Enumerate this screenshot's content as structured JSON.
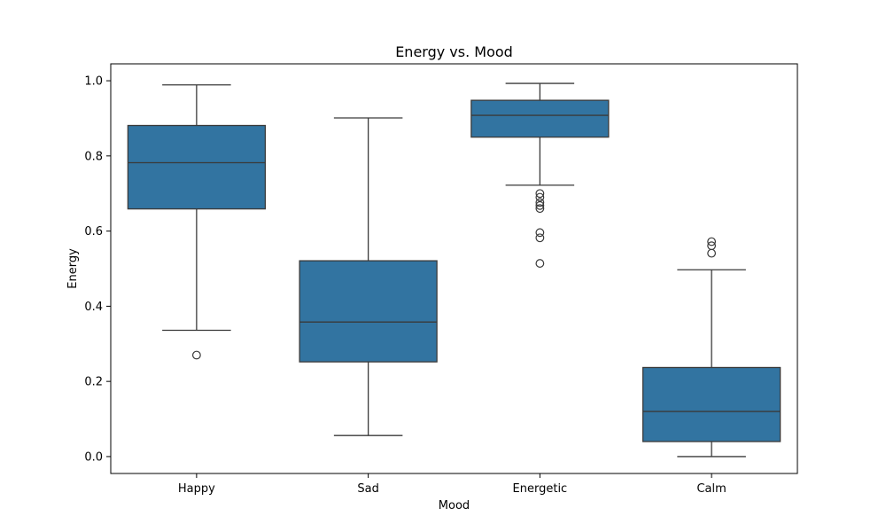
{
  "chart_data": {
    "type": "box",
    "title": "Energy vs. Mood",
    "xlabel": "Mood",
    "ylabel": "Energy",
    "ylim": [
      -0.045,
      1.045
    ],
    "yticks": [
      0.0,
      0.2,
      0.4,
      0.6,
      0.8,
      1.0
    ],
    "ytick_labels": [
      "0.0",
      "0.2",
      "0.4",
      "0.6",
      "0.8",
      "1.0"
    ],
    "grid": false,
    "box_color": "#3274a1",
    "categories": [
      "Happy",
      "Sad",
      "Energetic",
      "Calm"
    ],
    "boxes": [
      {
        "category": "Happy",
        "whisker_low": 0.336,
        "q1": 0.659,
        "median": 0.782,
        "q3": 0.881,
        "whisker_high": 0.989,
        "outliers": [
          0.27
        ]
      },
      {
        "category": "Sad",
        "whisker_low": 0.056,
        "q1": 0.252,
        "median": 0.358,
        "q3": 0.521,
        "whisker_high": 0.901,
        "outliers": []
      },
      {
        "category": "Energetic",
        "whisker_low": 0.722,
        "q1": 0.85,
        "median": 0.908,
        "q3": 0.948,
        "whisker_high": 0.993,
        "outliers": [
          0.7,
          0.69,
          0.676,
          0.668,
          0.66,
          0.596,
          0.582,
          0.514
        ]
      },
      {
        "category": "Calm",
        "whisker_low": 0.0,
        "q1": 0.04,
        "median": 0.12,
        "q3": 0.237,
        "whisker_high": 0.497,
        "outliers": [
          0.572,
          0.561,
          0.541
        ]
      }
    ]
  }
}
